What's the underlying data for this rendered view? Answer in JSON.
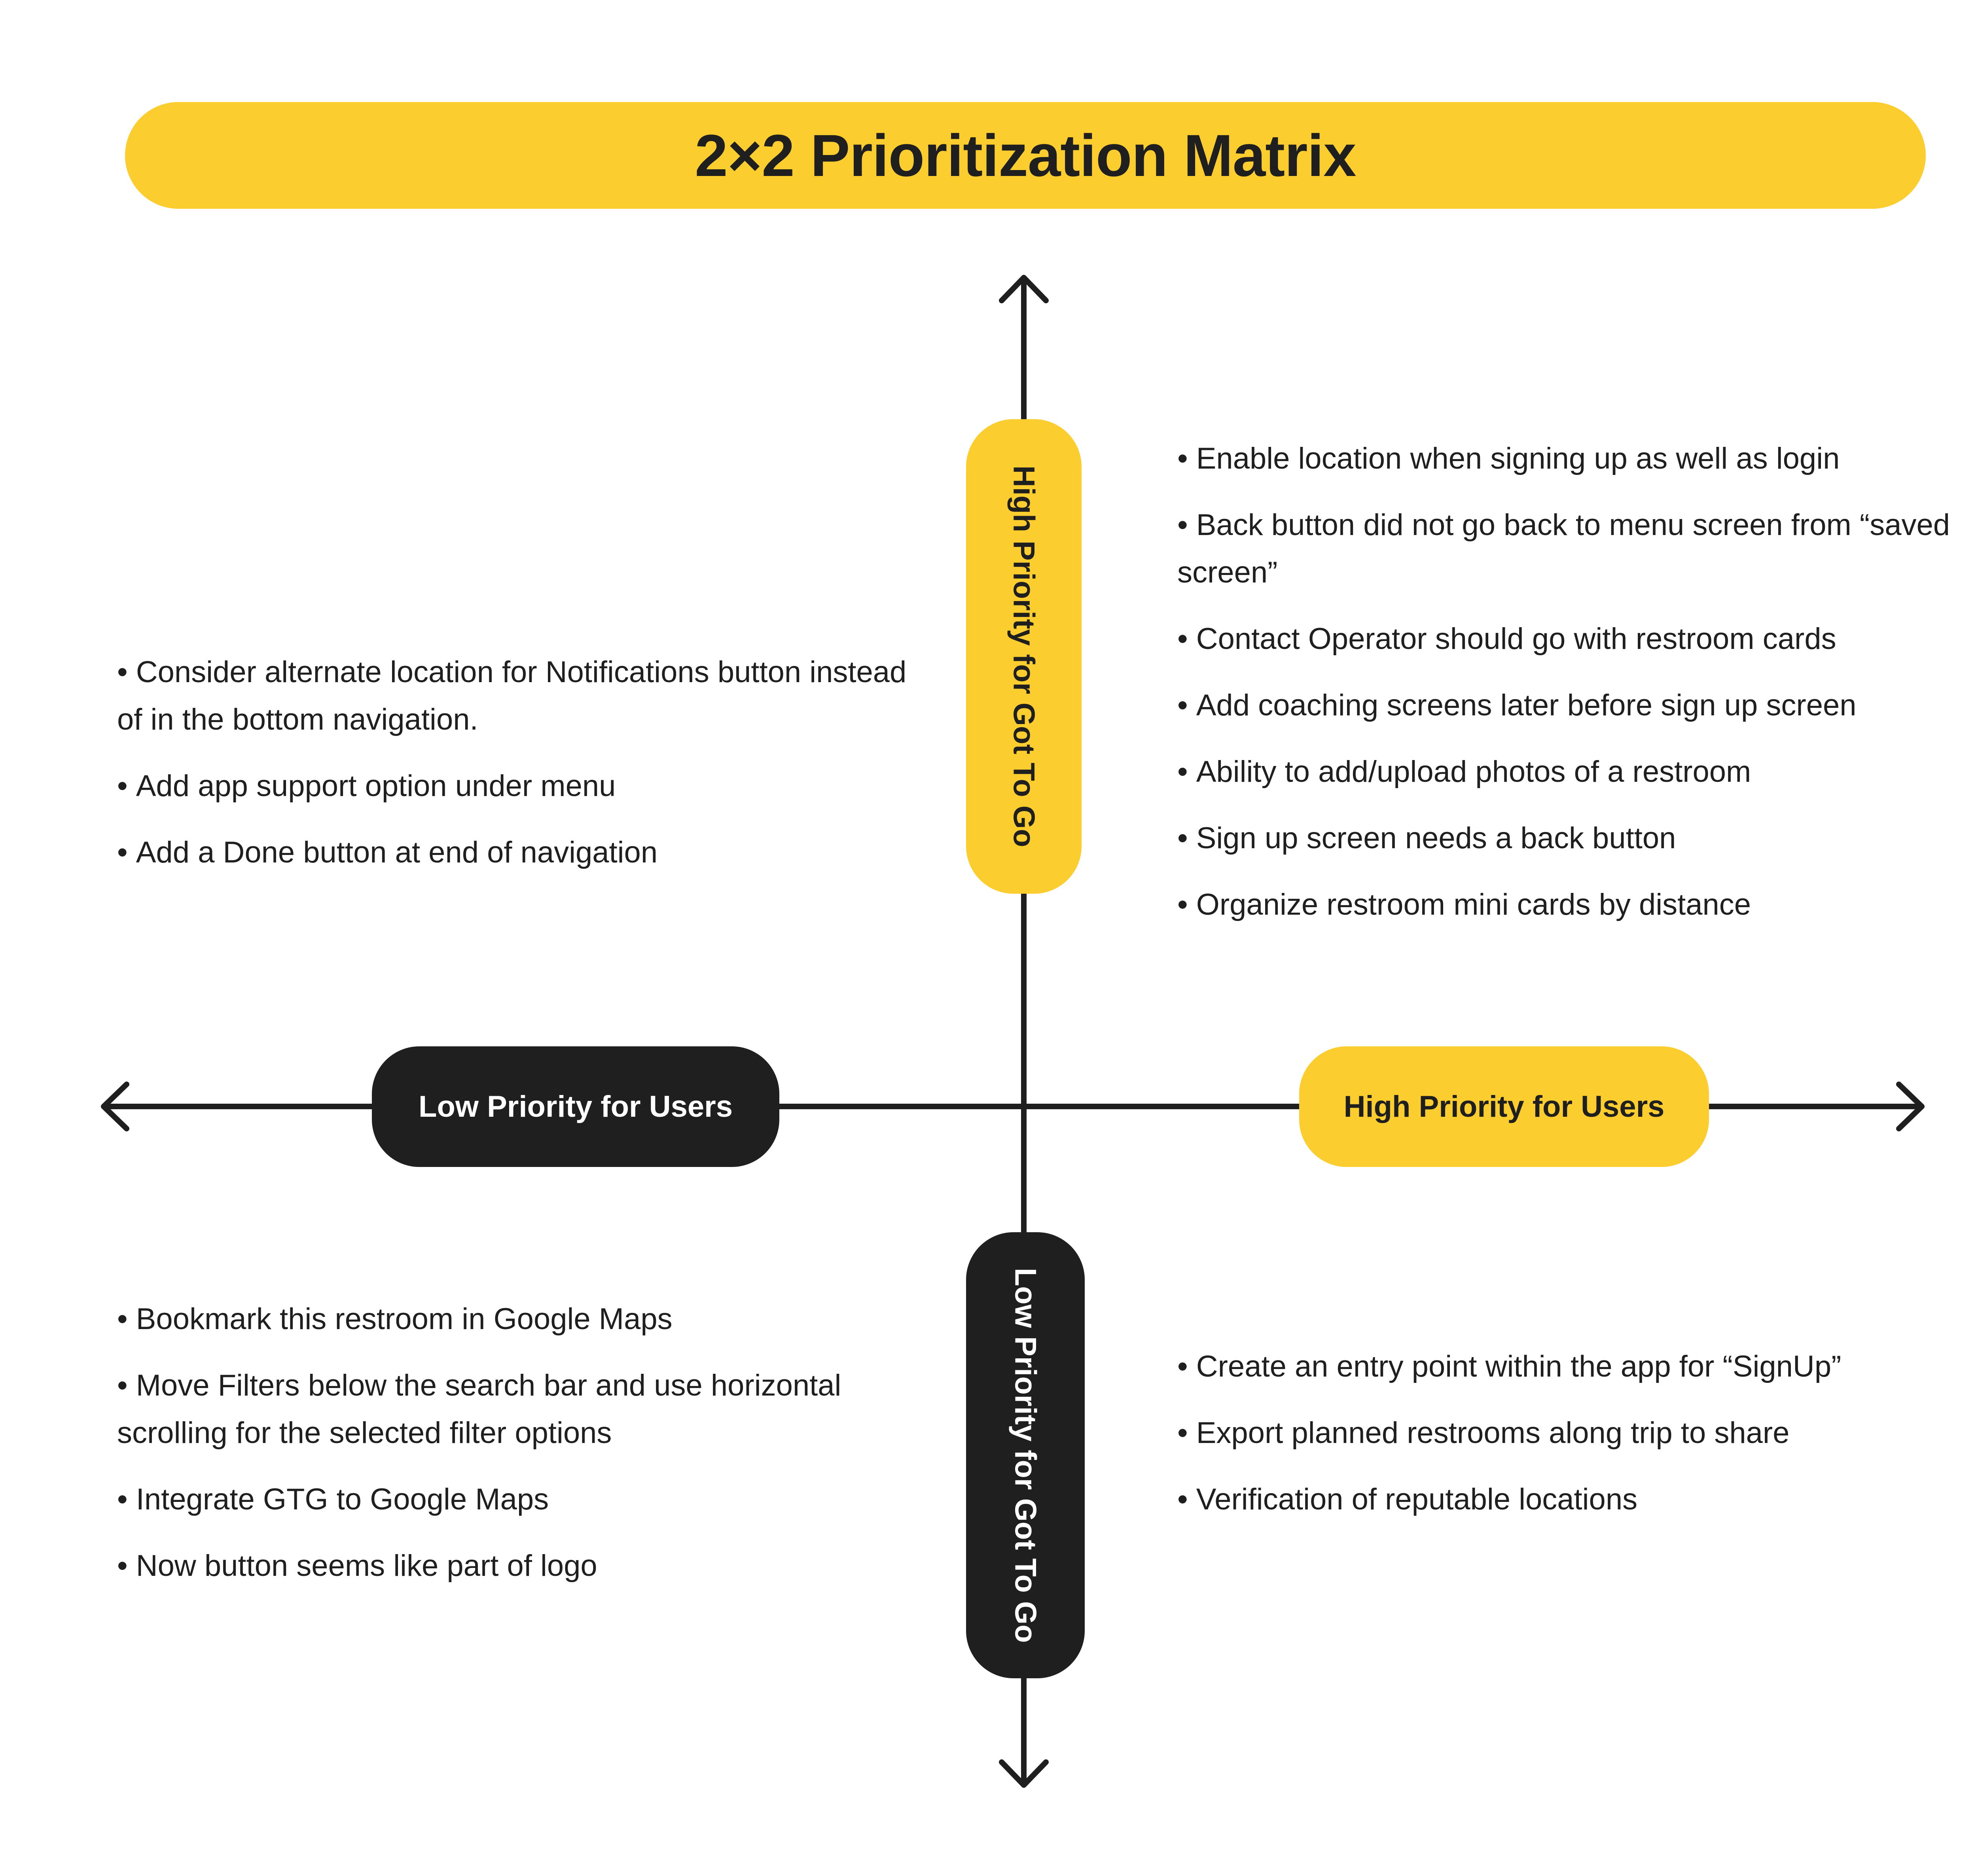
{
  "title": "2×2 Prioritization Matrix",
  "axes": {
    "x_low": "Low Priority for Users",
    "x_high": "High Priority for Users",
    "y_high": "High Priority for Got To Go",
    "y_low": "Low Priority for Got To Go"
  },
  "quadrants": {
    "top_left": [
      "Consider alternate location for Notifications button instead of in the bottom navigation.",
      "Add app support option under menu",
      "Add a Done button at end of navigation"
    ],
    "top_right": [
      "Enable location when signing up as well as login",
      "Back button did not go back to menu screen from “saved screen”",
      "Contact Operator should go with restroom cards",
      "Add coaching screens later before sign up screen",
      "Ability to add/upload photos of a restroom",
      "Sign up screen needs a back button",
      "Organize restroom mini cards by distance"
    ],
    "bottom_left": [
      "Bookmark this restroom in Google Maps",
      "Move Filters below the search bar and use horizontal scrolling for the selected filter options",
      "Integrate GTG to Google Maps",
      "Now button seems like part of logo"
    ],
    "bottom_right": [
      "Create an entry point within the app for “SignUp”",
      "Export planned restrooms along trip to share",
      "Verification of reputable locations"
    ]
  },
  "colors": {
    "accent": "#FCCD2F",
    "dark": "#1F1F1F",
    "background": "#FFFFFF"
  }
}
